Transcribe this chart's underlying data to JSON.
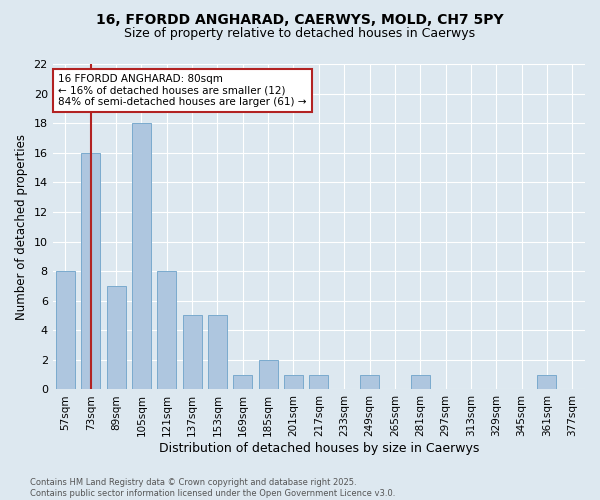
{
  "title_line1": "16, FFORDD ANGHARAD, CAERWYS, MOLD, CH7 5PY",
  "title_line2": "Size of property relative to detached houses in Caerwys",
  "xlabel": "Distribution of detached houses by size in Caerwys",
  "ylabel": "Number of detached properties",
  "bins": [
    "57sqm",
    "73sqm",
    "89sqm",
    "105sqm",
    "121sqm",
    "137sqm",
    "153sqm",
    "169sqm",
    "185sqm",
    "201sqm",
    "217sqm",
    "233sqm",
    "249sqm",
    "265sqm",
    "281sqm",
    "297sqm",
    "313sqm",
    "329sqm",
    "345sqm",
    "361sqm",
    "377sqm"
  ],
  "counts": [
    8,
    16,
    7,
    18,
    8,
    5,
    5,
    1,
    2,
    1,
    1,
    0,
    1,
    0,
    1,
    0,
    0,
    0,
    0,
    1,
    0
  ],
  "bar_color": "#aec6df",
  "bar_edge_color": "#7aaace",
  "vline_x": 1,
  "vline_color": "#b22222",
  "annotation_text": "16 FFORDD ANGHARAD: 80sqm\n← 16% of detached houses are smaller (12)\n84% of semi-detached houses are larger (61) →",
  "annotation_box_color": "white",
  "annotation_box_edge": "#b22222",
  "ylim": [
    0,
    22
  ],
  "yticks": [
    0,
    2,
    4,
    6,
    8,
    10,
    12,
    14,
    16,
    18,
    20,
    22
  ],
  "footer_text": "Contains HM Land Registry data © Crown copyright and database right 2025.\nContains public sector information licensed under the Open Government Licence v3.0.",
  "bg_color": "#dde8f0",
  "grid_color": "white"
}
